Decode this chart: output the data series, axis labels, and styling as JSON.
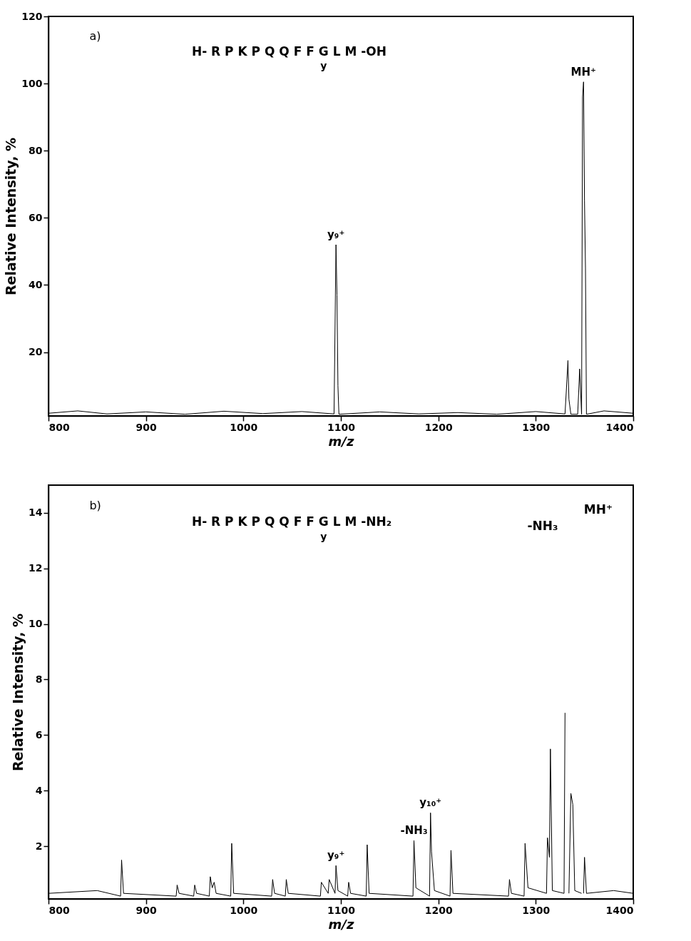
{
  "chart_data": [
    {
      "type": "line",
      "xlabel": "m/z",
      "ylabel": "Relative Intensity, %",
      "xlim": [
        800,
        1400
      ],
      "xticks": [
        800,
        900,
        1000,
        1100,
        1200,
        1300,
        1400
      ],
      "ylim": [
        1,
        120
      ],
      "yticks": [
        20,
        40,
        60,
        80,
        100,
        120
      ],
      "grid": false,
      "annotations": [
        "a)",
        "H- R P K P Q Q F F G L M  -OH",
        "y",
        {
          "text": "y₉⁺",
          "x": 1095,
          "y": 52
        },
        {
          "text": "MH⁺",
          "x": 1349,
          "y": 100.5
        }
      ],
      "series": [
        {
          "color": "#000000",
          "x": [
            800,
            830,
            860,
            900,
            940,
            980,
            1020,
            1060,
            1093,
            1095,
            1096,
            1097,
            1098,
            1140,
            1180,
            1220,
            1260,
            1300,
            1330,
            1332,
            1333,
            1334,
            1336,
            1343,
            1344,
            1345,
            1347,
            1348,
            1349,
            1350,
            1351,
            1352,
            1370,
            1400
          ],
          "values": [
            1.8,
            2.5,
            1.6,
            2.2,
            1.5,
            2.4,
            1.7,
            2.3,
            1.6,
            52,
            37,
            10,
            1.5,
            2.2,
            1.6,
            2.0,
            1.5,
            2.3,
            1.6,
            12,
            17.5,
            6,
            1.5,
            1.5,
            8,
            15,
            1.5,
            96,
            100.5,
            65,
            45,
            1.5,
            2.5,
            1.8
          ]
        }
      ]
    },
    {
      "type": "line",
      "xlabel": "m/z",
      "ylabel": "Relative Intensity, %",
      "xlim": [
        800,
        1400
      ],
      "xticks": [
        800,
        900,
        1000,
        1100,
        1200,
        1300,
        1400
      ],
      "ylim": [
        0.1,
        15
      ],
      "yticks": [
        2,
        4,
        6,
        8,
        10,
        12,
        14
      ],
      "grid": false,
      "annotations": [
        "b)",
        "H- R P K P Q Q F F G L M  -NH₂",
        "y",
        "-NH₃",
        "MH⁺",
        {
          "text": "y₉⁺",
          "x": 1095,
          "y": 1.3
        },
        {
          "text": "-NH₃",
          "x": 1175,
          "y": 2.2
        },
        {
          "text": "y₁₀⁺",
          "x": 1192,
          "y": 3.2
        }
      ],
      "series": [
        {
          "color": "#000000",
          "x": [
            800,
            850,
            874,
            875,
            877,
            931,
            932,
            934,
            949,
            950,
            952,
            965,
            966,
            968,
            970,
            972,
            987,
            988,
            990,
            1029,
            1030,
            1032,
            1043,
            1044,
            1046,
            1079,
            1080,
            1087,
            1088,
            1094,
            1095,
            1097,
            1107,
            1108,
            1110,
            1126,
            1127,
            1129,
            1174,
            1175,
            1177,
            1191,
            1192,
            1193,
            1196,
            1212,
            1213,
            1215,
            1272,
            1273,
            1275,
            1288,
            1289,
            1292,
            1311,
            1312,
            1314,
            1315,
            1317,
            1329,
            1330,
            1331,
            1332,
            1333,
            1334,
            1336,
            1338,
            1340,
            1347,
            1348,
            1349,
            1350,
            1352,
            1380,
            1400
          ],
          "values": [
            0.3,
            0.4,
            0.2,
            1.5,
            0.3,
            0.2,
            0.6,
            0.3,
            0.2,
            0.6,
            0.3,
            0.2,
            0.9,
            0.5,
            0.7,
            0.3,
            0.2,
            2.1,
            0.3,
            0.2,
            0.8,
            0.3,
            0.2,
            0.8,
            0.3,
            0.2,
            0.7,
            0.3,
            0.8,
            0.3,
            1.3,
            0.4,
            0.2,
            0.7,
            0.3,
            0.2,
            2.05,
            0.3,
            0.2,
            2.2,
            0.5,
            0.2,
            3.2,
            1.8,
            0.4,
            0.2,
            1.85,
            0.3,
            0.2,
            0.8,
            0.3,
            0.2,
            2.1,
            0.5,
            0.3,
            2.3,
            1.6,
            5.5,
            0.4,
            0.3,
            6.8,
            null,
            0.3,
            null,
            0.3,
            3.9,
            3.5,
            0.4,
            0.3,
            null,
            0.3,
            1.6,
            0.3,
            0.4,
            0.3
          ]
        }
      ]
    }
  ]
}
